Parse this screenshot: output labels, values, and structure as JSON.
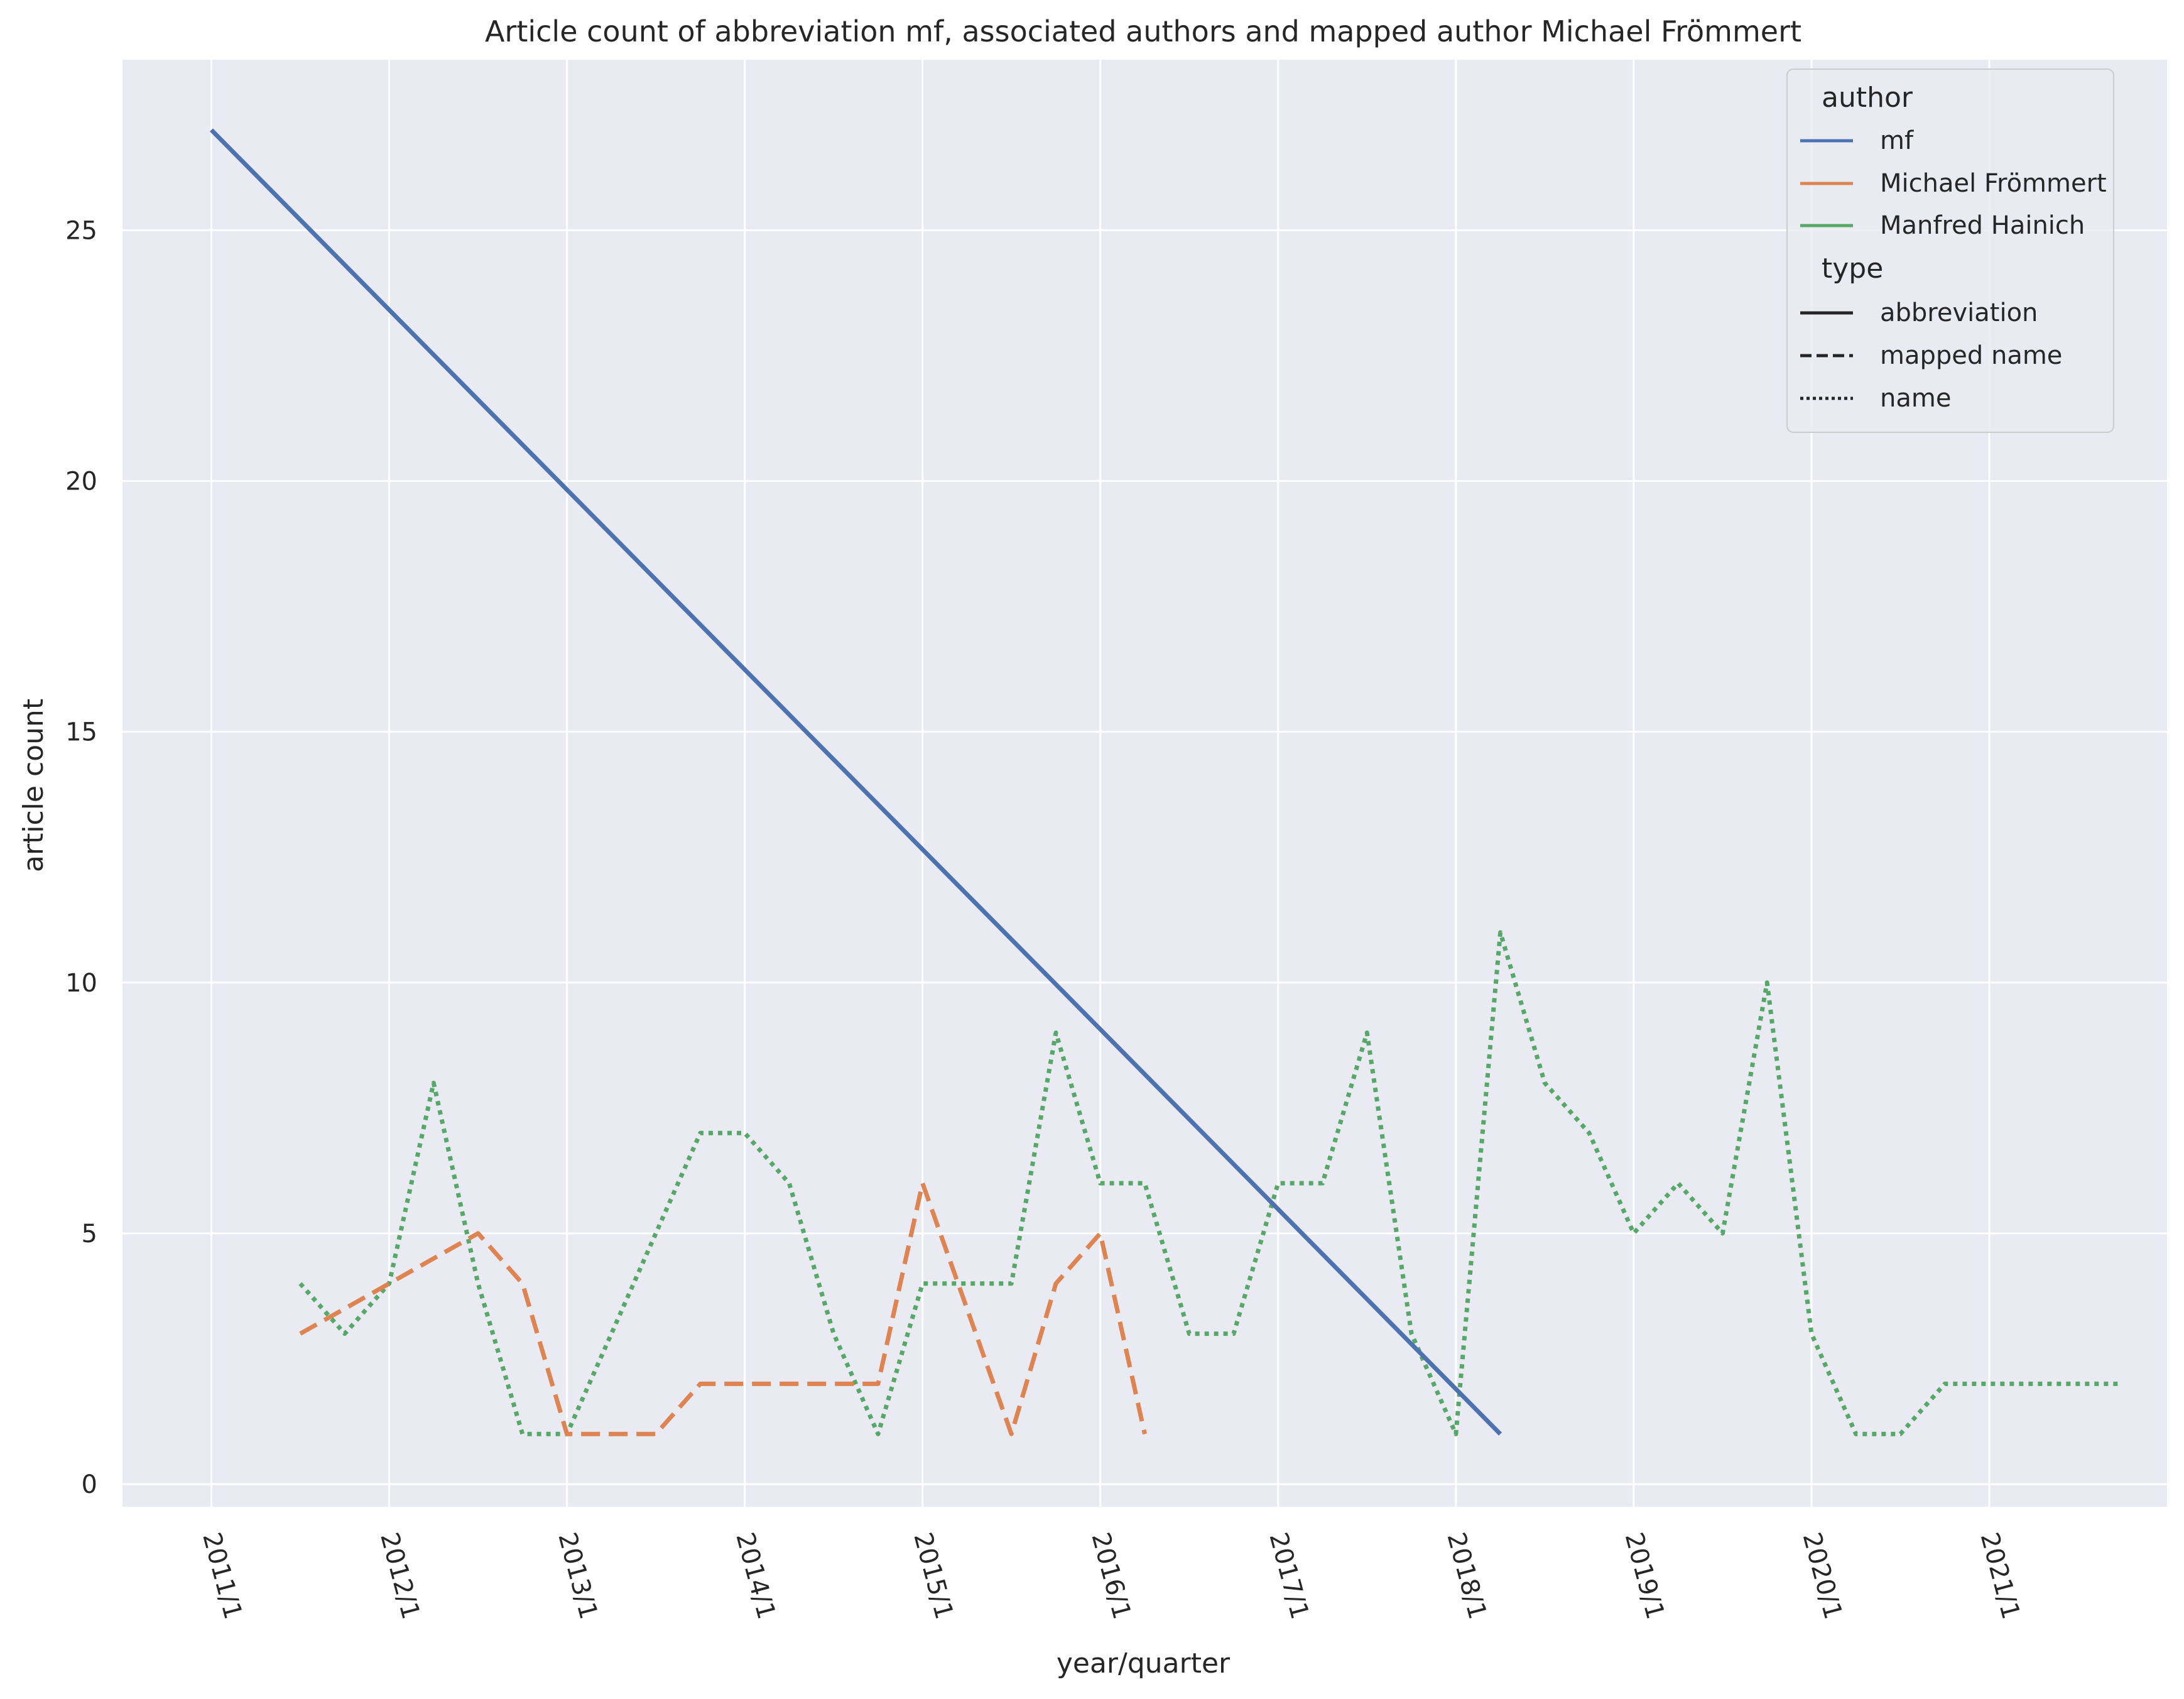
{
  "chart_data": {
    "type": "line",
    "title": "Article count of abbreviation mf, associated authors and mapped author Michael Frömmert",
    "xlabel": "year/quarter",
    "ylabel": "article count",
    "x_ticks": [
      "2011/1",
      "2012/1",
      "2013/1",
      "2014/1",
      "2015/1",
      "2016/1",
      "2017/1",
      "2018/1",
      "2019/1",
      "2020/1",
      "2021/1"
    ],
    "y_ticks": [
      0,
      5,
      10,
      15,
      20,
      25
    ],
    "ylim": [
      -0.45,
      28.4
    ],
    "xlim": [
      "2010/3",
      "2022/1"
    ],
    "grid": true,
    "legend_position": "top-right",
    "legend": {
      "author_title": "author",
      "type_title": "type",
      "authors": [
        {
          "name": "mf",
          "color": "#4c72b0"
        },
        {
          "name": "Michael Frömmert",
          "color": "#dd8452"
        },
        {
          "name": "Manfred Hainich",
          "color": "#55a868"
        }
      ],
      "types": [
        {
          "name": "abbreviation",
          "dash": "solid"
        },
        {
          "name": "mapped name",
          "dash": "dashed"
        },
        {
          "name": "name",
          "dash": "dotted"
        }
      ]
    },
    "series": [
      {
        "name": "mf",
        "type": "abbreviation",
        "color": "#4c72b0",
        "dash": "solid",
        "x": [
          "2011/1",
          "2018/2"
        ],
        "values": [
          27,
          1
        ]
      },
      {
        "name": "Michael Frömmert",
        "type": "mapped name",
        "color": "#dd8452",
        "dash": "dashed",
        "x": [
          "2011/3",
          "2012/1",
          "2012/3",
          "2012/4",
          "2013/1",
          "2013/3",
          "2013/4",
          "2014/3",
          "2014/4",
          "2015/1",
          "2015/3",
          "2015/4",
          "2016/1",
          "2016/2"
        ],
        "values": [
          3,
          4,
          5,
          4,
          1,
          1,
          2,
          2,
          2,
          6,
          1,
          4,
          5,
          1
        ]
      },
      {
        "name": "Manfred Hainich",
        "type": "name",
        "color": "#55a868",
        "dash": "dotted",
        "x": [
          "2011/3",
          "2011/4",
          "2012/1",
          "2012/2",
          "2012/3",
          "2012/4",
          "2013/1",
          "2013/2",
          "2013/3",
          "2013/4",
          "2014/1",
          "2014/2",
          "2014/3",
          "2014/4",
          "2015/1",
          "2015/2",
          "2015/3",
          "2015/4",
          "2016/1",
          "2016/2",
          "2016/3",
          "2016/4",
          "2017/1",
          "2017/2",
          "2017/3",
          "2017/4",
          "2018/1",
          "2018/2",
          "2018/3",
          "2018/4",
          "2019/1",
          "2019/2",
          "2019/3",
          "2019/4",
          "2020/1",
          "2020/2",
          "2020/3",
          "2020/4",
          "2021/1",
          "2021/2",
          "2021/3",
          "2021/4"
        ],
        "values": [
          4,
          3,
          4,
          8,
          4,
          1,
          1,
          3,
          5,
          7,
          7,
          6,
          3,
          1,
          4,
          4,
          4,
          9,
          6,
          6,
          3,
          3,
          6,
          6,
          9,
          3,
          1,
          11,
          8,
          7,
          5,
          6,
          5,
          10,
          3,
          1,
          1,
          2,
          2,
          2,
          2,
          2
        ]
      }
    ]
  }
}
